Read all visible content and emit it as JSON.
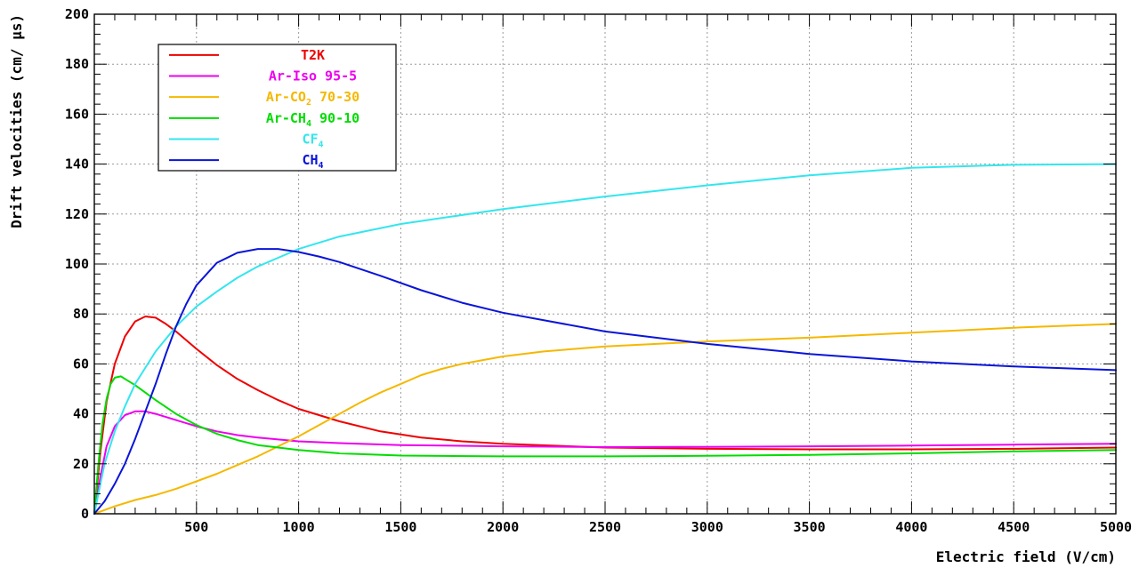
{
  "chart_data": {
    "type": "line",
    "xlabel": "Electric field (V/cm)",
    "ylabel": "Drift velocities (cm/ µs)",
    "xlim": [
      0,
      5000
    ],
    "ylim": [
      0,
      200
    ],
    "x_ticks": [
      500,
      1000,
      1500,
      2000,
      2500,
      3000,
      3500,
      4000,
      4500,
      5000
    ],
    "y_ticks": [
      0,
      20,
      40,
      60,
      80,
      100,
      120,
      140,
      160,
      180,
      200
    ],
    "grid": true,
    "legend_position": "top-left",
    "series": [
      {
        "name": "T2K",
        "legend": {
          "main": "T2K",
          "sub": "",
          "tail": ""
        },
        "color": "#ee0000",
        "x": [
          0,
          30,
          60,
          100,
          150,
          200,
          250,
          300,
          350,
          400,
          500,
          600,
          700,
          800,
          900,
          1000,
          1200,
          1400,
          1600,
          1800,
          2000,
          2500,
          3000,
          3500,
          4000,
          4500,
          5000
        ],
        "y": [
          0,
          25,
          45,
          60,
          71,
          77,
          79,
          78.5,
          76,
          73,
          66,
          59.5,
          54,
          49.5,
          45.5,
          42,
          37,
          33,
          30.5,
          29,
          28,
          26.5,
          26,
          25.8,
          25.8,
          26,
          26.5
        ]
      },
      {
        "name": "Ar-Iso 95-5",
        "legend": {
          "main": "Ar-Iso 95-5",
          "sub": "",
          "tail": ""
        },
        "color": "#ee00ee",
        "x": [
          0,
          30,
          60,
          100,
          150,
          200,
          250,
          300,
          400,
          500,
          600,
          700,
          800,
          1000,
          1200,
          1500,
          2000,
          2500,
          3000,
          3500,
          4000,
          4500,
          5000
        ],
        "y": [
          0,
          15,
          27,
          35,
          39.5,
          41,
          41,
          40,
          37.5,
          35,
          33,
          31.5,
          30.5,
          29,
          28.3,
          27.5,
          27,
          26.7,
          26.8,
          27,
          27.3,
          27.7,
          28
        ]
      },
      {
        "name": "Ar-CO2 70-30",
        "legend": {
          "main": "Ar-CO",
          "sub": "2",
          "tail": " 70-30"
        },
        "color": "#f5b800",
        "x": [
          0,
          100,
          200,
          300,
          400,
          500,
          600,
          700,
          800,
          900,
          1000,
          1100,
          1200,
          1300,
          1400,
          1500,
          1600,
          1700,
          1800,
          2000,
          2200,
          2500,
          3000,
          3500,
          4000,
          4500,
          5000
        ],
        "y": [
          0,
          3,
          5.5,
          7.5,
          10,
          13,
          16,
          19.5,
          23,
          27,
          31,
          35.5,
          40,
          44.5,
          48.5,
          52,
          55.5,
          58,
          60,
          63,
          65,
          67,
          69,
          70.5,
          72.5,
          74.5,
          76
        ]
      },
      {
        "name": "Ar-CH4 90-10",
        "legend": {
          "main": "Ar-CH",
          "sub": "4",
          "tail": " 90-10"
        },
        "color": "#00dd00",
        "x": [
          0,
          20,
          40,
          60,
          80,
          100,
          130,
          160,
          200,
          250,
          300,
          400,
          500,
          600,
          700,
          800,
          1000,
          1200,
          1500,
          2000,
          2500,
          3000,
          3500,
          4000,
          4500,
          5000
        ],
        "y": [
          0,
          20,
          36,
          46,
          52,
          54.5,
          55,
          53.5,
          51.5,
          48.5,
          45.5,
          40,
          35.5,
          32,
          29.5,
          27.5,
          25.5,
          24.2,
          23.3,
          23,
          23,
          23.2,
          23.6,
          24.2,
          25,
          25.5
        ]
      },
      {
        "name": "CF4",
        "legend": {
          "main": "CF",
          "sub": "4",
          "tail": ""
        },
        "color": "#33e6ee",
        "x": [
          0,
          50,
          100,
          150,
          200,
          300,
          400,
          500,
          600,
          700,
          800,
          900,
          1000,
          1200,
          1500,
          2000,
          2500,
          3000,
          3500,
          4000,
          4500,
          5000
        ],
        "y": [
          0,
          20,
          33,
          43,
          52,
          65,
          75,
          83,
          89,
          94.5,
          99,
          102.5,
          106,
          111,
          116,
          122,
          127,
          131.5,
          135.5,
          138.5,
          139.7,
          140
        ]
      },
      {
        "name": "CH4",
        "legend": {
          "main": "CH",
          "sub": "4",
          "tail": ""
        },
        "color": "#0a14d8",
        "x": [
          0,
          50,
          100,
          150,
          200,
          250,
          300,
          350,
          400,
          450,
          500,
          600,
          700,
          800,
          900,
          1000,
          1100,
          1200,
          1400,
          1600,
          1800,
          2000,
          2500,
          3000,
          3500,
          4000,
          4500,
          5000
        ],
        "y": [
          0,
          5,
          12,
          20,
          30,
          41,
          52,
          64,
          75,
          84,
          91.5,
          100.5,
          104.5,
          106,
          106,
          104.8,
          103,
          100.8,
          95.3,
          89.5,
          84.5,
          80.5,
          73,
          68,
          64,
          61,
          59,
          57.5
        ]
      }
    ]
  }
}
